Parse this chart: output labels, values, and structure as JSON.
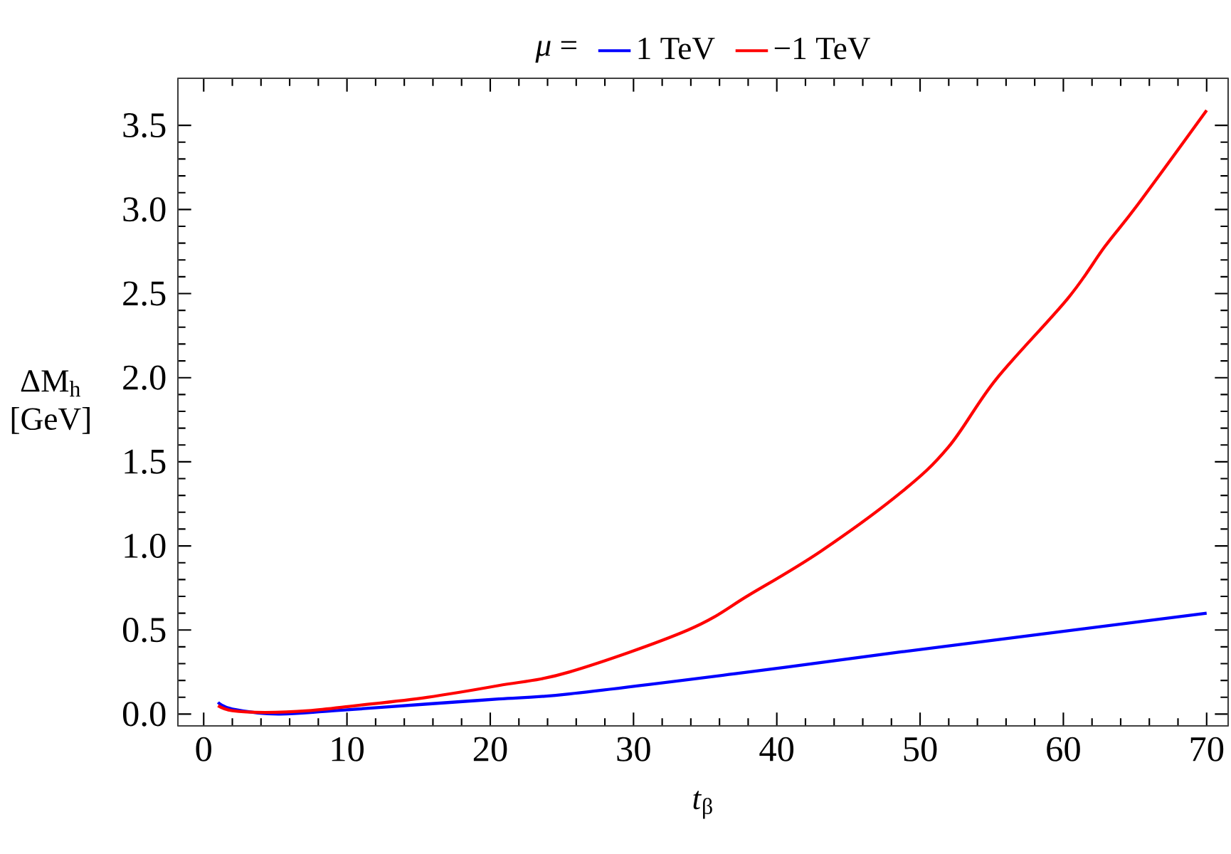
{
  "chart_data": {
    "type": "line",
    "xlabel": "*t*$_{β}$",
    "ylabel": "ΔM$_{h}$ [GeV]",
    "legend_title": "*μ* =",
    "xlim": [
      -1.8,
      71.5
    ],
    "ylim": [
      -0.07,
      3.78
    ],
    "xticks": [
      0,
      10,
      20,
      30,
      40,
      50,
      60,
      70
    ],
    "yticks": [
      {
        "value": 0,
        "label": "0.0"
      },
      0.5,
      {
        "value": 1,
        "label": "1.0"
      },
      1.5,
      {
        "value": 2,
        "label": "2.0"
      },
      2.5,
      {
        "value": 3,
        "label": "3.0"
      },
      3.5
    ],
    "legend": "top",
    "grid": false,
    "marker": "none",
    "line_style": "solid",
    "series": [
      {
        "name": "1 TeV",
        "color": "#0000ff",
        "x": [
          1,
          2,
          5.2,
          9.1,
          15.6,
          20.6,
          25.5,
          37.1,
          48.7,
          70
        ],
        "values": [
          0.07,
          0.03,
          0.0,
          0.02,
          0.06,
          0.09,
          0.12,
          0.24,
          0.37,
          0.6
        ]
      },
      {
        "name": "−1 TeV",
        "color": "#ff0000",
        "x": [
          1,
          2,
          4.3,
          7.3,
          10.6,
          15.6,
          20.6,
          25.5,
          33.8,
          38.1,
          43.1,
          48.7,
          52.0,
          55.3,
          60.3,
          62.9,
          65.2,
          70
        ],
        "values": [
          0.05,
          0.02,
          0.01,
          0.02,
          0.05,
          0.1,
          0.17,
          0.25,
          0.5,
          0.71,
          0.97,
          1.32,
          1.59,
          1.99,
          2.47,
          2.78,
          3.03,
          3.59
        ]
      }
    ]
  }
}
